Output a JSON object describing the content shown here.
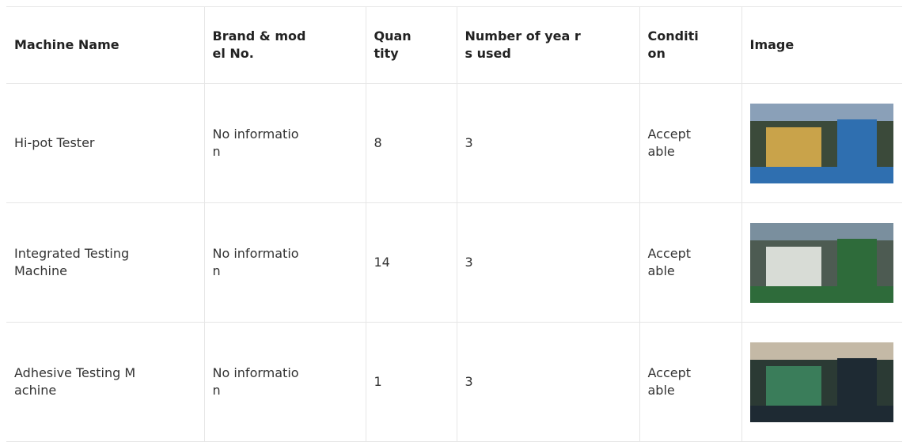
{
  "table": {
    "header": [
      [
        "Machine Name"
      ],
      [
        "Brand & mod",
        "el No."
      ],
      [
        "Quan",
        "tity"
      ],
      [
        "Number of yea r",
        "s used"
      ],
      [
        "Conditi",
        "on"
      ],
      [
        "Image"
      ]
    ],
    "rows": [
      [
        [
          "Hi-pot Tester"
        ],
        [
          "No informatio",
          "n"
        ],
        [
          "8"
        ],
        [
          "3"
        ],
        [
          "Accept",
          "able"
        ]
      ],
      [
        [
          "Integrated Testing",
          "Machine"
        ],
        [
          "No informatio",
          "n"
        ],
        [
          "14"
        ],
        [
          "3"
        ],
        [
          "Accept",
          "able"
        ]
      ],
      [
        [
          "Adhesive Testing M",
          "achine"
        ],
        [
          "No informatio",
          "n"
        ],
        [
          "1"
        ],
        [
          "3"
        ],
        [
          "Accept",
          "able"
        ]
      ]
    ]
  }
}
